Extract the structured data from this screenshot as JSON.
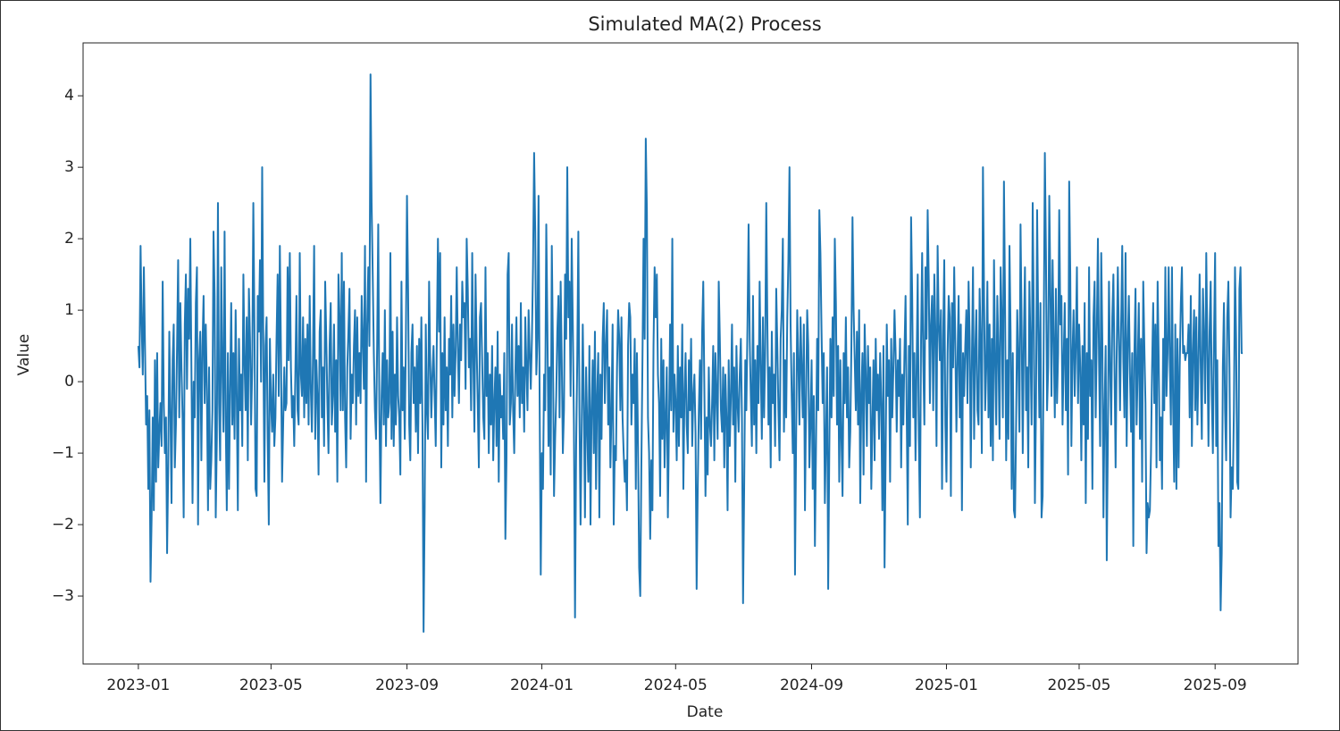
{
  "chart_data": {
    "type": "line",
    "title": "Simulated MA(2) Process",
    "xlabel": "Date",
    "ylabel": "Value",
    "color": "#1f77b4",
    "xlim": [
      -50,
      1049
    ],
    "xticks": [
      {
        "value": 0,
        "label": "2023-01"
      },
      {
        "value": 120,
        "label": "2023-05"
      },
      {
        "value": 243,
        "label": "2023-09"
      },
      {
        "value": 365,
        "label": "2024-01"
      },
      {
        "value": 486,
        "label": "2024-05"
      },
      {
        "value": 609,
        "label": "2024-09"
      },
      {
        "value": 731,
        "label": "2025-01"
      },
      {
        "value": 851,
        "label": "2025-05"
      },
      {
        "value": 974,
        "label": "2025-09"
      }
    ],
    "ylim": [
      -3.95,
      4.74
    ],
    "yticks": [
      {
        "value": -3,
        "label": "−3"
      },
      {
        "value": -2,
        "label": "−2"
      },
      {
        "value": -1,
        "label": "−1"
      },
      0,
      1,
      2,
      3,
      4
    ],
    "values": [
      0.5,
      0.2,
      1.9,
      0.8,
      0.1,
      1.6,
      0.5,
      -0.6,
      -0.2,
      -1.5,
      -0.4,
      -2.8,
      -1.9,
      -0.5,
      -1.8,
      0.3,
      -1.4,
      0.4,
      -1.2,
      -0.7,
      -0.3,
      -0.9,
      1.4,
      -0.3,
      -1.0,
      -0.5,
      -2.4,
      -1.2,
      0.7,
      -0.4,
      -1.7,
      0.3,
      0.8,
      -1.2,
      -0.6,
      0.5,
      1.7,
      -0.5,
      1.1,
      0.2,
      -0.5,
      -1.9,
      0.8,
      1.5,
      -0.1,
      1.3,
      0.6,
      2.0,
      0.2,
      -1.7,
      0.0,
      -0.5,
      1.1,
      1.6,
      -2.0,
      0.3,
      0.7,
      -1.1,
      0.5,
      1.2,
      -0.3,
      0.8,
      -0.1,
      -1.8,
      0.2,
      -1.5,
      -1.1,
      -0.4,
      2.1,
      1.2,
      -1.9,
      -0.8,
      2.5,
      -0.3,
      -1.1,
      1.6,
      0.2,
      -0.7,
      2.1,
      -0.5,
      -1.8,
      0.4,
      -1.5,
      -0.1,
      1.1,
      -0.6,
      0.4,
      -0.8,
      1.0,
      -0.2,
      -1.8,
      0.6,
      -0.4,
      0.1,
      -0.9,
      1.5,
      0.3,
      -0.4,
      0.9,
      -1.1,
      1.3,
      0.6,
      -0.6,
      0.2,
      2.5,
      0.8,
      -1.5,
      -1.6,
      1.2,
      0.7,
      1.7,
      0.0,
      3.0,
      0.6,
      -1.4,
      0.5,
      0.9,
      -0.8,
      -2.0,
      0.6,
      -0.3,
      -0.7,
      0.1,
      -0.9,
      -0.5,
      0.6,
      1.5,
      -0.2,
      1.9,
      0.4,
      -1.4,
      -0.6,
      0.2,
      -0.4,
      -0.3,
      1.6,
      0.3,
      1.8,
      0.2,
      -0.5,
      -0.2,
      -0.9,
      0.1,
      1.2,
      -0.4,
      -0.6,
      1.8,
      0.1,
      -0.2,
      0.9,
      -0.5,
      0.6,
      -0.3,
      0.8,
      -0.6,
      1.2,
      -0.1,
      -0.7,
      0.4,
      1.9,
      -0.8,
      0.3,
      -0.2,
      -1.3,
      0.7,
      1.0,
      -0.5,
      0.2,
      -0.9,
      1.4,
      0.6,
      -0.3,
      -1.0,
      0.5,
      1.1,
      -0.6,
      -0.2,
      0.8,
      -0.7,
      0.3,
      -1.4,
      1.5,
      0.9,
      -0.4,
      1.8,
      -0.4,
      1.4,
      -0.5,
      -1.2,
      0.2,
      0.7,
      1.3,
      -0.8,
      0.1,
      -0.3,
      0.5,
      1.0,
      -0.6,
      0.9,
      -0.2,
      0.4,
      -0.3,
      1.2,
      0.6,
      -0.1,
      1.9,
      -1.4,
      0.8,
      1.6,
      0.5,
      4.3,
      2.5,
      1.5,
      0.4,
      -0.4,
      -0.8,
      0.5,
      2.2,
      -0.4,
      -1.7,
      -0.2,
      0.4,
      -0.6,
      1.0,
      -0.9,
      0.3,
      -0.5,
      -0.3,
      1.8,
      -0.8,
      0.7,
      -0.9,
      0.1,
      -0.6,
      0.9,
      -0.2,
      -0.5,
      -1.3,
      1.4,
      -0.4,
      0.2,
      -0.8,
      0.6,
      2.6,
      1.3,
      -0.6,
      -1.1,
      0.4,
      0.8,
      -0.3,
      0.2,
      -0.7,
      0.5,
      -1.0,
      0.6,
      -0.3,
      0.9,
      -0.6,
      -3.5,
      -1.8,
      0.8,
      -0.4,
      -0.8,
      1.4,
      0.3,
      -0.5,
      0.1,
      0.5,
      -0.2,
      -0.9,
      0.6,
      2.0,
      0.7,
      1.8,
      -1.2,
      0.4,
      -0.6,
      0.9,
      -0.4,
      0.2,
      -0.9,
      0.6,
      0.1,
      1.2,
      -0.5,
      0.8,
      -0.2,
      0.4,
      1.6,
      0.5,
      -0.3,
      0.8,
      0.3,
      1.4,
      0.9,
      1.1,
      -0.1,
      2.0,
      1.3,
      0.2,
      0.6,
      -0.4,
      1.8,
      0.3,
      -0.7,
      1.5,
      0.5,
      -0.3,
      -1.2,
      0.9,
      1.1,
      0.3,
      -0.5,
      -0.8,
      1.6,
      -0.2,
      0.4,
      -1.0,
      0.1,
      -0.6,
      0.5,
      -1.1,
      -0.3,
      0.2,
      -0.9,
      0.7,
      -1.4,
      0.1,
      -0.5,
      -0.2,
      -0.8,
      0.4,
      -2.2,
      -1.1,
      1.5,
      1.8,
      -0.6,
      -0.3,
      0.8,
      -0.4,
      -1.0,
      0.1,
      0.9,
      -0.2,
      0.5,
      -0.5,
      1.1,
      -0.3,
      0.2,
      -0.7,
      0.9,
      0.2,
      -0.4,
      1.0,
      0.4,
      -0.1,
      0.6,
      1.6,
      3.2,
      2.1,
      0.1,
      0.6,
      2.6,
      -0.3,
      -2.7,
      -1.0,
      -1.5,
      0.1,
      -0.4,
      2.2,
      0.8,
      -0.9,
      0.2,
      -1.3,
      1.9,
      0.5,
      -1.6,
      -0.8,
      -0.2,
      0.7,
      1.2,
      -0.5,
      1.4,
      0.3,
      -1.0,
      -0.4,
      1.5,
      0.6,
      3.0,
      0.9,
      1.4,
      -0.2,
      2.0,
      0.8,
      -0.6,
      -3.3,
      -0.9,
      0.3,
      2.1,
      -0.4,
      -2.0,
      -0.7,
      0.8,
      -0.3,
      -1.9,
      0.2,
      -0.6,
      -1.4,
      0.5,
      -2.0,
      -0.4,
      0.3,
      -1.0,
      0.7,
      -1.5,
      -0.2,
      0.4,
      -1.9,
      0.1,
      -0.8,
      0.6,
      1.1,
      -0.3,
      0.5,
      1.0,
      -0.6,
      0.2,
      -1.2,
      -0.4,
      0.8,
      -2.0,
      -0.9,
      -1.1,
      0.2,
      1.0,
      0.6,
      -0.4,
      0.9,
      -0.5,
      -1.0,
      -1.4,
      -1.1,
      -1.8,
      0.5,
      1.1,
      0.9,
      -0.6,
      0.1,
      -0.3,
      0.6,
      -1.5,
      0.4,
      -0.9,
      -2.6,
      -3.0,
      -1.2,
      0.3,
      2.0,
      0.6,
      3.4,
      2.4,
      -0.5,
      -1.0,
      -2.2,
      -1.1,
      -1.8,
      0.5,
      1.6,
      0.9,
      1.5,
      0.1,
      -0.3,
      -1.6,
      0.6,
      -0.8,
      0.3,
      -1.2,
      -0.5,
      0.2,
      -1.9,
      -0.6,
      0.8,
      -0.4,
      2.0,
      -0.7,
      0.1,
      -0.3,
      -1.1,
      0.5,
      -0.9,
      0.2,
      -0.5,
      0.8,
      -1.5,
      -0.2,
      0.4,
      -0.6,
      -1.0,
      0.3,
      -0.4,
      0.6,
      -0.9,
      -0.2,
      0.1,
      -0.7,
      -2.9,
      -1.5,
      -0.4,
      0.3,
      -0.8,
      0.7,
      1.4,
      -0.1,
      -1.6,
      -0.5,
      -1.3,
      0.2,
      -0.6,
      -0.9,
      -0.3,
      0.5,
      -1.1,
      0.4,
      -0.2,
      -0.8,
      1.4,
      0.6,
      -0.4,
      -0.7,
      0.2,
      -1.2,
      0.1,
      -0.5,
      -1.8,
      0.3,
      -0.9,
      -0.2,
      0.8,
      -0.6,
      0.2,
      -1.4,
      0.5,
      -0.3,
      -0.7,
      0.1,
      0.6,
      -0.5,
      -3.1,
      -1.5,
      0.3,
      -0.4,
      0.8,
      2.2,
      0.6,
      -0.2,
      -0.9,
      1.2,
      -0.6,
      0.3,
      -1.0,
      0.5,
      -0.3,
      1.4,
      0.2,
      -0.8,
      0.9,
      -0.5,
      0.4,
      2.5,
      0.8,
      -0.6,
      0.2,
      -1.2,
      0.7,
      -0.3,
      0.1,
      -0.9,
      1.3,
      0.5,
      -0.4,
      -1.1,
      0.6,
      1.0,
      2.0,
      -0.7,
      0.3,
      -0.5,
      0.9,
      1.7,
      3.0,
      0.8,
      -0.2,
      -1.0,
      0.4,
      -2.7,
      -0.8,
      1.0,
      0.3,
      -0.6,
      0.9,
      0.2,
      -0.5,
      0.8,
      -1.8,
      -0.3,
      1.0,
      0.5,
      -1.2,
      -0.6,
      0.3,
      -1.5,
      -0.2,
      -2.3,
      -0.9,
      0.6,
      -0.4,
      2.4,
      1.8,
      0.7,
      -0.3,
      0.4,
      -1.7,
      -0.8,
      0.2,
      -2.9,
      -1.0,
      0.6,
      -0.5,
      0.9,
      -0.2,
      2.0,
      1.1,
      -0.6,
      0.5,
      -1.4,
      0.3,
      -0.8,
      -1.6,
      0.4,
      -0.3,
      0.9,
      -0.5,
      0.2,
      -1.2,
      -0.7,
      0.5,
      2.3,
      1.0,
      0.3,
      -0.4,
      0.7,
      -0.6,
      1.0,
      -1.7,
      -0.2,
      0.4,
      -1.3,
      0.8,
      0.1,
      -0.9,
      0.5,
      -0.3,
      0.2,
      -1.5,
      -0.6,
      0.3,
      -1.1,
      0.6,
      -0.4,
      0.1,
      -0.8,
      0.4,
      -0.3,
      -1.8,
      0.5,
      -2.6,
      -1.0,
      0.8,
      -0.2,
      0.3,
      -1.4,
      0.6,
      -0.5,
      0.2,
      1.0,
      0.4,
      -0.7,
      0.3,
      -0.2,
      0.6,
      -1.2,
      0.1,
      -0.6,
      0.4,
      1.2,
      -0.4,
      -2.0,
      0.5,
      -0.9,
      2.3,
      1.2,
      -0.5,
      0.4,
      -1.1,
      0.2,
      1.5,
      -0.8,
      -1.9,
      0.6,
      1.8,
      0.3,
      -0.6,
      1.6,
      0.6,
      2.4,
      1.4,
      -0.3,
      0.8,
      1.2,
      -0.4,
      1.5,
      0.7,
      -0.9,
      1.9,
      0.8,
      0.3,
      1.0,
      -1.5,
      0.6,
      1.7,
      -0.6,
      -1.4,
      0.4,
      1.2,
      0.9,
      -1.6,
      1.1,
      0.2,
      1.6,
      0.5,
      -0.7,
      0.3,
      1.2,
      -0.5,
      0.8,
      -1.8,
      0.4,
      -0.2,
      0.5,
      1.0,
      -0.3,
      1.4,
      0.6,
      -1.2,
      0.3,
      1.6,
      -0.8,
      0.4,
      1.0,
      -0.4,
      -0.6,
      1.3,
      0.5,
      -1.0,
      3.0,
      1.2,
      -0.4,
      0.2,
      1.4,
      -0.5,
      0.8,
      -0.9,
      0.6,
      -1.1,
      1.7,
      0.3,
      -0.6,
      1.2,
      0.4,
      -0.8,
      1.6,
      0.9,
      -0.5,
      2.8,
      1.1,
      -1.1,
      0.3,
      -0.8,
      1.9,
      0.7,
      -1.5,
      0.4,
      -1.8,
      -1.9,
      -0.6,
      1.0,
      0.3,
      -0.7,
      2.2,
      0.8,
      -1.0,
      0.6,
      1.6,
      -0.4,
      0.2,
      -1.2,
      1.4,
      0.5,
      -0.6,
      2.5,
      0.9,
      -1.7,
      -0.3,
      2.4,
      0.8,
      -0.5,
      1.1,
      -1.9,
      -1.6,
      0.7,
      3.2,
      1.8,
      -0.4,
      0.2,
      2.6,
      1.3,
      -0.2,
      1.7,
      0.6,
      -0.5,
      1.3,
      -0.3,
      0.4,
      2.4,
      0.8,
      1.2,
      -0.6,
      0.3,
      1.1,
      -0.4,
      0.6,
      -1.3,
      2.8,
      1.5,
      -0.9,
      0.4,
      1.0,
      -0.2,
      0.5,
      1.6,
      -0.3,
      0.8,
      0.2,
      -1.1,
      0.5,
      -0.6,
      1.1,
      -1.7,
      0.4,
      -0.8,
      1.6,
      -0.2,
      0.3,
      -1.5,
      0.9,
      1.4,
      -0.5,
      0.7,
      2.0,
      0.3,
      -0.9,
      1.8,
      0.6,
      -1.9,
      -0.4,
      0.5,
      -2.5,
      -0.8,
      1.4,
      0.2,
      -0.6,
      0.9,
      1.5,
      0.2,
      -1.2,
      0.4,
      1.6,
      0.6,
      -0.4,
      0.8,
      1.9,
      0.3,
      -0.5,
      1.8,
      -0.9,
      0.5,
      1.2,
      0.1,
      -0.7,
      0.4,
      -2.3,
      0.4,
      1.3,
      -0.6,
      0.2,
      1.1,
      -0.8,
      0.6,
      -1.4,
      1.4,
      0.5,
      -0.3,
      -2.4,
      -1.7,
      -1.9,
      -1.8,
      -1.0,
      0.2,
      1.1,
      -0.3,
      0.8,
      -1.2,
      1.4,
      0.3,
      -1.1,
      -0.5,
      -1.5,
      0.6,
      -0.4,
      1.6,
      -0.2,
      0.4,
      1.6,
      0.3,
      -0.6,
      1.6,
      -0.3,
      -1.4,
      0.8,
      -1.5,
      0.6,
      -1.2,
      0.2,
      1.1,
      1.6,
      0.4,
      0.5,
      0.3,
      0.4,
      0.4,
      0.8,
      -0.5,
      1.2,
      -0.9,
      0.4,
      1.0,
      -0.4,
      0.9,
      -0.6,
      0.3,
      1.5,
      0.2,
      -0.8,
      1.3,
      0.6,
      -0.3,
      1.8,
      0.5,
      -0.9,
      0.7,
      1.4,
      -0.2,
      -1.0,
      0.6,
      1.8,
      -0.9,
      0.3,
      -2.3,
      -1.7,
      -3.2,
      -2.4,
      0.2,
      1.1,
      -0.4,
      -1.1,
      0.9,
      1.4,
      0.2,
      -1.9,
      -1.2,
      -1.5,
      -0.4,
      1.6,
      0.6,
      -1.4,
      -1.5,
      1.3,
      1.6,
      0.4,
      0.4
    ]
  }
}
